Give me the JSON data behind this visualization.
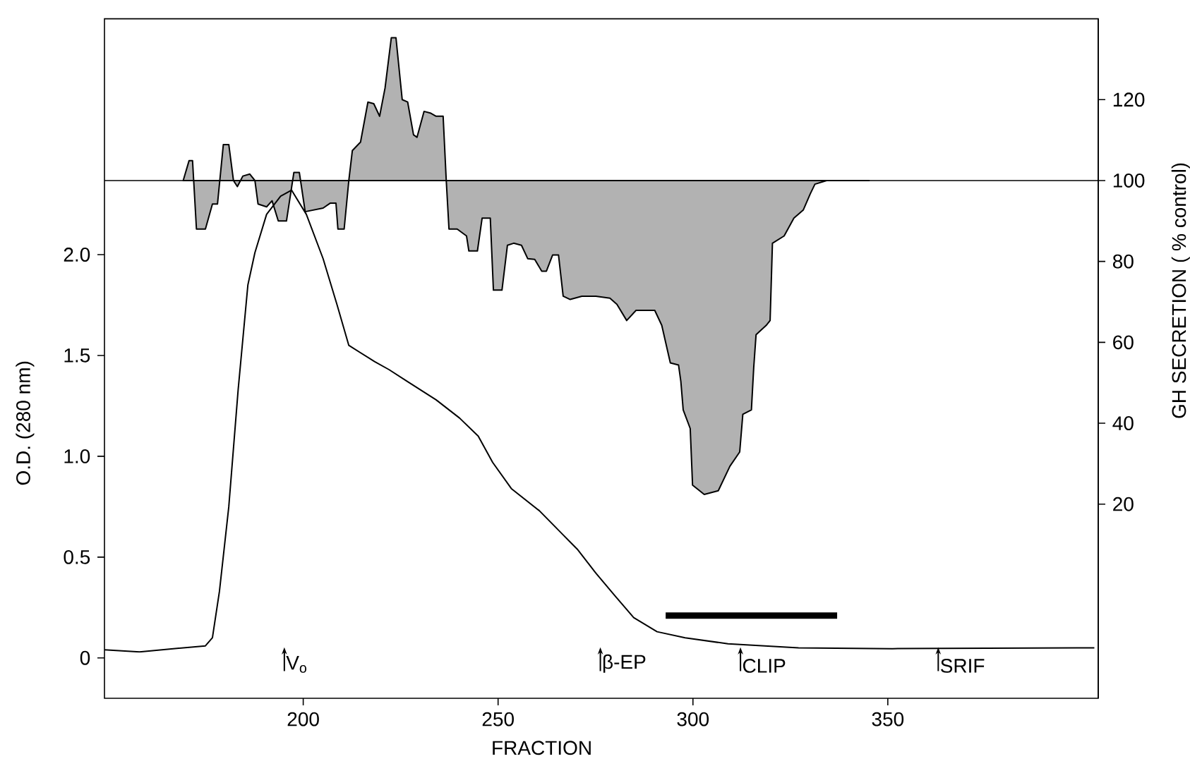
{
  "chart_data": {
    "type": "line",
    "xlabel": "FRACTION",
    "ylabel": "O.D. (280 nm)",
    "y2label": "GH SECRETION ( % control)",
    "xlim": [
      149,
      404
    ],
    "xticks": [
      200,
      250,
      300,
      350
    ],
    "ylim": [
      -0.2,
      3.17
    ],
    "yticks": [
      0,
      0.5,
      {
        "value": 1,
        "label": "1.0"
      },
      1.5,
      {
        "value": 2,
        "label": "2.0"
      }
    ],
    "y2lim": [
      -28,
      140
    ],
    "y2ticks": [
      20,
      40,
      60,
      80,
      100,
      120
    ],
    "series": [
      {
        "color": "#000000",
        "x": [
          149,
          158,
          174.9,
          176.7,
          178.5,
          180.9,
          183.3,
          185.8,
          187.6,
          190.6,
          194.2,
          197,
          200.8,
          205.1,
          208.7,
          211.7,
          218.3,
          222,
          226.8,
          234.1,
          240.1,
          244.9,
          248.6,
          253.4,
          260.6,
          266.7,
          270.3,
          275.1,
          279.9,
          284.8,
          290.8,
          298,
          309,
          327.1,
          351.2,
          403
        ],
        "values": [
          0.04,
          0.03,
          0.06,
          0.1,
          0.33,
          0.75,
          1.33,
          1.85,
          2.01,
          2.2,
          2.29,
          2.32,
          2.2,
          1.98,
          1.75,
          1.55,
          1.47,
          1.43,
          1.37,
          1.28,
          1.19,
          1.1,
          0.97,
          0.84,
          0.73,
          0.61,
          0.54,
          0.42,
          0.31,
          0.2,
          0.13,
          0.1,
          0.07,
          0.05,
          0.046,
          0.05
        ]
      },
      {
        "type": "area",
        "axis": "y2",
        "color": "#000000",
        "x": [
          169.2,
          170.7,
          171.6,
          172.6,
          174.9,
          176.7,
          178,
          179.5,
          180.9,
          182.1,
          183.1,
          184.5,
          186.3,
          187.6,
          188.4,
          190.6,
          192,
          193.6,
          195.7,
          197.6,
          199,
          200.5,
          205.1,
          206.9,
          208.4,
          208.9,
          210.5,
          211.7,
          212.6,
          214.7,
          216.6,
          218.1,
          219.6,
          221,
          222.6,
          223.8,
          225.4,
          226.8,
          228.3,
          229.2,
          231,
          232.6,
          234.1,
          235.9,
          236.7,
          237.4,
          239.5,
          241.9,
          242.5,
          244.7,
          245.9,
          248,
          248.8,
          251,
          252.4,
          254,
          256,
          257.6,
          259.4,
          261.2,
          262.4,
          264,
          265.5,
          266.7,
          268.5,
          271.5,
          275.1,
          278.7,
          280.5,
          283,
          285.4,
          290.2,
          292,
          294.2,
          296.3,
          296.9,
          297.5,
          299.3,
          299.9,
          302.9,
          306.5,
          309.5,
          312,
          312.8,
          315,
          315.6,
          316.2,
          318.8,
          319.8,
          320.4,
          323.4,
          325.9,
          328.3,
          330.1,
          331.3,
          334.3,
          345.2
        ],
        "values": [
          100,
          104.9,
          104.9,
          88,
          88,
          94.2,
          94.2,
          108.9,
          108.9,
          100,
          98.5,
          101.1,
          101.6,
          100,
          94.2,
          93.5,
          95,
          90,
          90,
          102,
          102,
          92.3,
          93.2,
          94.4,
          94.4,
          88,
          88,
          100,
          107.4,
          109.5,
          119.4,
          119,
          115.9,
          122.9,
          135.3,
          135.3,
          120,
          119.4,
          111.3,
          110.7,
          117.1,
          116.7,
          115.9,
          115.9,
          100,
          88,
          88,
          86.3,
          82.6,
          82.6,
          90.7,
          90.7,
          72.9,
          72.9,
          84,
          84.5,
          84,
          80.7,
          80.5,
          77.6,
          77.6,
          81.6,
          81.6,
          71.4,
          70.6,
          71.4,
          71.4,
          70.9,
          69.4,
          65.4,
          67.9,
          67.9,
          64.2,
          54.9,
          54.4,
          50.3,
          43.3,
          38.7,
          24.7,
          22.4,
          23.3,
          29.4,
          32.9,
          42.2,
          43.3,
          53.8,
          61.9,
          64.2,
          65.4,
          84.5,
          86.3,
          90.7,
          92.7,
          96.7,
          99.1,
          100,
          100
        ]
      },
      {
        "color": "#000000",
        "x": [
          293,
          337
        ],
        "values": [
          0.21,
          0.21
        ]
      }
    ],
    "ref_lines": [
      {
        "axis": "y2",
        "value": 100
      }
    ],
    "annotations": [
      "V$_{o}$",
      "β-EP",
      "CLIP",
      "SRIF"
    ]
  }
}
